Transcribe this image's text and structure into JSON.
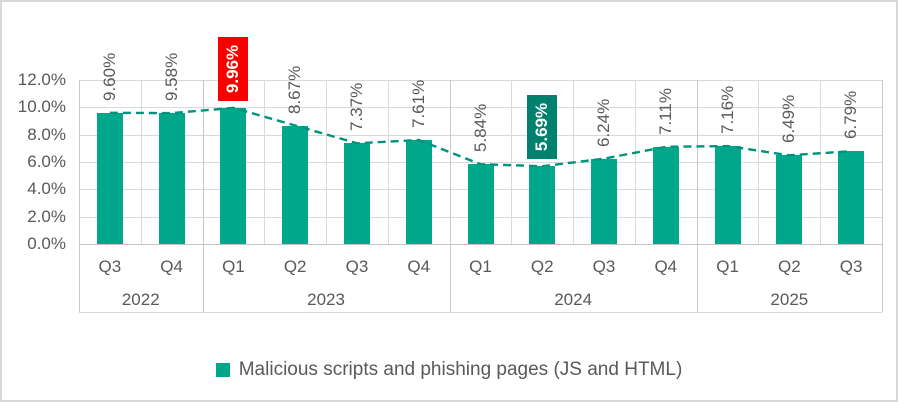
{
  "chart_data": {
    "type": "bar",
    "title": "",
    "legend": {
      "label": "Malicious scripts and phishing pages (JS and HTML)",
      "swatch_color": "#00A88B"
    },
    "categories": [
      "Q3",
      "Q4",
      "Q1",
      "Q2",
      "Q3",
      "Q4",
      "Q1",
      "Q2",
      "Q3",
      "Q4",
      "Q1",
      "Q2",
      "Q3"
    ],
    "groups": [
      {
        "year": "2022",
        "count": 2
      },
      {
        "year": "2023",
        "count": 4
      },
      {
        "year": "2024",
        "count": 4
      },
      {
        "year": "2025",
        "count": 3
      }
    ],
    "series": [
      {
        "name": "Malicious scripts and phishing pages (JS and HTML)",
        "values": [
          9.6,
          9.58,
          9.96,
          8.67,
          7.37,
          7.61,
          5.84,
          5.69,
          6.24,
          7.11,
          7.16,
          6.49,
          6.79
        ],
        "labels": [
          "9.60%",
          "9.58%",
          "9.96%",
          "8.67%",
          "7.37%",
          "7.61%",
          "5.84%",
          "5.69%",
          "6.24%",
          "7.11%",
          "7.16%",
          "6.49%",
          "6.79%"
        ]
      }
    ],
    "highlights": [
      {
        "index": 2,
        "kind": "max",
        "bg": "#F80000",
        "text_color": "#FFFFFF"
      },
      {
        "index": 7,
        "kind": "min",
        "bg": "#00806E",
        "text_color": "#FFFFFF"
      }
    ],
    "trendline": {
      "style": "dashed",
      "color": "#00927D"
    },
    "y_axis": {
      "ticks": [
        "12.0%",
        "10.0%",
        "8.0%",
        "6.0%",
        "4.0%",
        "2.0%",
        "0.0%"
      ],
      "min": 0,
      "max": 12,
      "step": 2
    },
    "grid": "on",
    "legend_position": "bottom",
    "colors": {
      "bar": "#00A88B",
      "grid": "#D9D9D9",
      "axis_text": "#595959"
    }
  }
}
